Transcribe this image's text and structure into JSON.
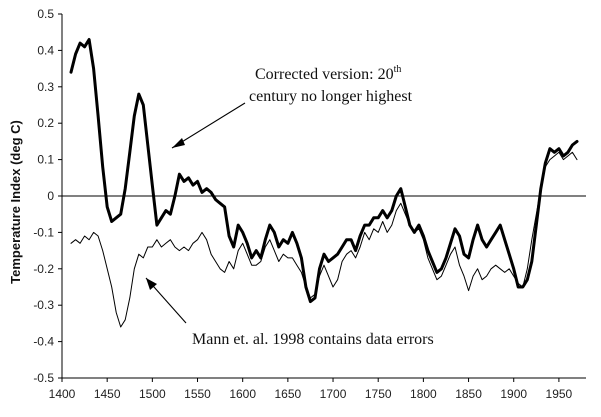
{
  "chart_data": {
    "type": "line",
    "title": "",
    "xlabel": "",
    "ylabel": "Temperature Index (deg C)",
    "xlim": [
      1400,
      1980
    ],
    "ylim": [
      -0.5,
      0.5
    ],
    "x_ticks": [
      "1400",
      "1450",
      "1500",
      "1550",
      "1600",
      "1650",
      "1700",
      "1750",
      "1800",
      "1850",
      "1900",
      "1950"
    ],
    "y_ticks": [
      "0.5",
      "0.4",
      "0.3",
      "0.2",
      "0.1",
      "0",
      "-0.1",
      "-0.2",
      "-0.3",
      "-0.4",
      "-0.5"
    ],
    "zero_line": true,
    "grid": false,
    "series": [
      {
        "name": "Corrected version",
        "color": "#000000",
        "style": "thick",
        "x": [
          1410,
          1415,
          1420,
          1425,
          1430,
          1435,
          1440,
          1445,
          1450,
          1455,
          1460,
          1465,
          1470,
          1475,
          1480,
          1485,
          1490,
          1495,
          1500,
          1505,
          1510,
          1515,
          1520,
          1525,
          1530,
          1535,
          1540,
          1545,
          1550,
          1555,
          1560,
          1565,
          1570,
          1575,
          1580,
          1585,
          1590,
          1595,
          1600,
          1605,
          1610,
          1615,
          1620,
          1625,
          1630,
          1635,
          1640,
          1645,
          1650,
          1655,
          1660,
          1665,
          1670,
          1675,
          1680,
          1685,
          1690,
          1695,
          1700,
          1705,
          1710,
          1715,
          1720,
          1725,
          1730,
          1735,
          1740,
          1745,
          1750,
          1755,
          1760,
          1765,
          1770,
          1775,
          1780,
          1785,
          1790,
          1795,
          1800,
          1805,
          1810,
          1815,
          1820,
          1825,
          1830,
          1835,
          1840,
          1845,
          1850,
          1855,
          1860,
          1865,
          1870,
          1875,
          1880,
          1885,
          1890,
          1895,
          1900,
          1905,
          1910,
          1915,
          1920,
          1925,
          1930,
          1935,
          1940,
          1945,
          1950,
          1955,
          1960,
          1965,
          1970
        ],
        "y": [
          0.34,
          0.39,
          0.42,
          0.41,
          0.43,
          0.35,
          0.22,
          0.08,
          -0.03,
          -0.07,
          -0.06,
          -0.05,
          0.02,
          0.12,
          0.22,
          0.28,
          0.25,
          0.14,
          0.03,
          -0.08,
          -0.06,
          -0.04,
          -0.05,
          0.0,
          0.06,
          0.04,
          0.05,
          0.03,
          0.04,
          0.01,
          0.02,
          0.01,
          -0.01,
          -0.02,
          -0.03,
          -0.11,
          -0.14,
          -0.08,
          -0.1,
          -0.13,
          -0.17,
          -0.15,
          -0.17,
          -0.12,
          -0.08,
          -0.1,
          -0.14,
          -0.12,
          -0.13,
          -0.1,
          -0.13,
          -0.17,
          -0.25,
          -0.29,
          -0.28,
          -0.2,
          -0.16,
          -0.18,
          -0.17,
          -0.16,
          -0.14,
          -0.12,
          -0.12,
          -0.15,
          -0.11,
          -0.08,
          -0.08,
          -0.06,
          -0.06,
          -0.04,
          -0.06,
          -0.04,
          0.0,
          0.02,
          -0.03,
          -0.08,
          -0.1,
          -0.08,
          -0.11,
          -0.15,
          -0.18,
          -0.21,
          -0.2,
          -0.17,
          -0.13,
          -0.09,
          -0.11,
          -0.16,
          -0.17,
          -0.12,
          -0.08,
          -0.12,
          -0.14,
          -0.12,
          -0.1,
          -0.08,
          -0.12,
          -0.16,
          -0.2,
          -0.25,
          -0.25,
          -0.23,
          -0.18,
          -0.08,
          0.02,
          0.09,
          0.13,
          0.12,
          0.13,
          0.11,
          0.12,
          0.14,
          0.15
        ]
      },
      {
        "name": "Mann et. al. 1998",
        "color": "#000000",
        "style": "thin",
        "x": [
          1410,
          1415,
          1420,
          1425,
          1430,
          1435,
          1440,
          1445,
          1450,
          1455,
          1460,
          1465,
          1470,
          1475,
          1480,
          1485,
          1490,
          1495,
          1500,
          1505,
          1510,
          1515,
          1520,
          1525,
          1530,
          1535,
          1540,
          1545,
          1550,
          1555,
          1560,
          1565,
          1570,
          1575,
          1580,
          1585,
          1590,
          1595,
          1600,
          1605,
          1610,
          1615,
          1620,
          1625,
          1630,
          1635,
          1640,
          1645,
          1650,
          1655,
          1660,
          1665,
          1670,
          1675,
          1680,
          1685,
          1690,
          1695,
          1700,
          1705,
          1710,
          1715,
          1720,
          1725,
          1730,
          1735,
          1740,
          1745,
          1750,
          1755,
          1760,
          1765,
          1770,
          1775,
          1780,
          1785,
          1790,
          1795,
          1800,
          1805,
          1810,
          1815,
          1820,
          1825,
          1830,
          1835,
          1840,
          1845,
          1850,
          1855,
          1860,
          1865,
          1870,
          1875,
          1880,
          1885,
          1890,
          1895,
          1900,
          1905,
          1910,
          1915,
          1920,
          1925,
          1930,
          1935,
          1940,
          1945,
          1950,
          1955,
          1960,
          1965,
          1970
        ],
        "y": [
          -0.13,
          -0.12,
          -0.13,
          -0.11,
          -0.12,
          -0.1,
          -0.11,
          -0.15,
          -0.2,
          -0.25,
          -0.32,
          -0.36,
          -0.34,
          -0.28,
          -0.2,
          -0.16,
          -0.17,
          -0.14,
          -0.14,
          -0.12,
          -0.14,
          -0.13,
          -0.12,
          -0.14,
          -0.15,
          -0.14,
          -0.15,
          -0.13,
          -0.12,
          -0.1,
          -0.12,
          -0.16,
          -0.18,
          -0.2,
          -0.21,
          -0.18,
          -0.2,
          -0.15,
          -0.13,
          -0.16,
          -0.19,
          -0.19,
          -0.18,
          -0.14,
          -0.12,
          -0.15,
          -0.18,
          -0.16,
          -0.17,
          -0.17,
          -0.19,
          -0.21,
          -0.25,
          -0.28,
          -0.27,
          -0.22,
          -0.19,
          -0.22,
          -0.25,
          -0.23,
          -0.18,
          -0.16,
          -0.15,
          -0.17,
          -0.14,
          -0.1,
          -0.12,
          -0.09,
          -0.1,
          -0.07,
          -0.1,
          -0.08,
          -0.04,
          -0.02,
          -0.05,
          -0.08,
          -0.1,
          -0.09,
          -0.12,
          -0.17,
          -0.2,
          -0.23,
          -0.22,
          -0.19,
          -0.16,
          -0.14,
          -0.19,
          -0.22,
          -0.26,
          -0.22,
          -0.2,
          -0.23,
          -0.22,
          -0.2,
          -0.19,
          -0.2,
          -0.21,
          -0.2,
          -0.22,
          -0.24,
          -0.25,
          -0.2,
          -0.12,
          -0.05,
          0.02,
          0.08,
          0.1,
          0.11,
          0.12,
          0.1,
          0.11,
          0.12,
          0.1
        ]
      }
    ],
    "annotations": [
      {
        "text": "Corrected version: 20",
        "superscript": "th",
        "text2": "century no longer highest"
      },
      {
        "text": "Mann et. al. 1998 contains data errors"
      }
    ]
  }
}
